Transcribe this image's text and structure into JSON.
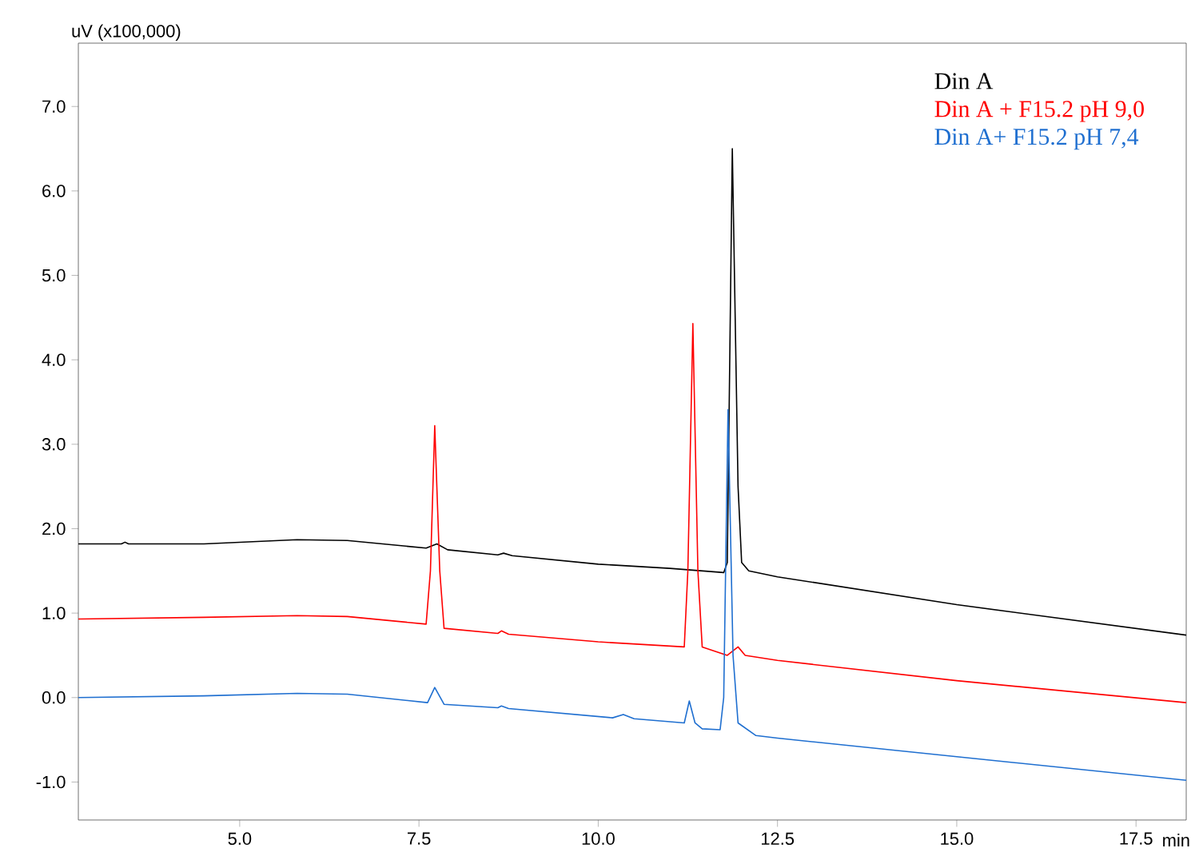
{
  "chart_data": {
    "type": "line",
    "xlabel": "min",
    "ylabel": "uV (x100,000)",
    "xlim": [
      2.75,
      18.2
    ],
    "ylim": [
      -1.45,
      7.75
    ],
    "xticks": [
      {
        "value": 5,
        "label": "5.0"
      },
      {
        "value": 7.5,
        "label": "7.5"
      },
      {
        "value": 10,
        "label": "10.0"
      },
      {
        "value": 12.5,
        "label": "12.5"
      },
      {
        "value": 15,
        "label": "15.0"
      },
      {
        "value": 17.5,
        "label": "17.5"
      }
    ],
    "yticks": [
      {
        "value": -1,
        "label": "-1.0"
      },
      {
        "value": 0,
        "label": "0.0"
      },
      {
        "value": 1,
        "label": "1.0"
      },
      {
        "value": 2,
        "label": "2.0"
      },
      {
        "value": 3,
        "label": "3.0"
      },
      {
        "value": 4,
        "label": "4.0"
      },
      {
        "value": 5,
        "label": "5.0"
      },
      {
        "value": 6,
        "label": "6.0"
      },
      {
        "value": 7,
        "label": "7.0"
      }
    ],
    "grid": false,
    "legend": "top right",
    "marker": "none",
    "line_style": "solid",
    "series": [
      {
        "name": "Din A",
        "color": "#000000",
        "x": [
          2.75,
          3.35,
          3.4,
          3.45,
          4.5,
          5.8,
          6.5,
          7.6,
          7.75,
          7.9,
          8.6,
          8.68,
          8.8,
          10,
          11.0,
          11.75,
          11.8,
          11.87,
          11.95,
          12.0,
          12.1,
          12.5,
          15,
          18.2
        ],
        "values": [
          1.82,
          1.82,
          1.84,
          1.82,
          1.82,
          1.87,
          1.86,
          1.77,
          1.82,
          1.75,
          1.69,
          1.71,
          1.68,
          1.58,
          1.53,
          1.48,
          1.6,
          6.5,
          2.5,
          1.6,
          1.5,
          1.43,
          1.1,
          0.74
        ]
      },
      {
        "name": "Din A + F15.2 pH 9,0",
        "color": "#ff0000",
        "x": [
          2.75,
          4.5,
          5.8,
          6.5,
          7.6,
          7.66,
          7.72,
          7.79,
          7.85,
          8.6,
          8.65,
          8.75,
          10,
          11.2,
          11.25,
          11.32,
          11.39,
          11.45,
          11.8,
          11.95,
          12.05,
          12.5,
          15,
          18.2
        ],
        "values": [
          0.93,
          0.95,
          0.97,
          0.96,
          0.87,
          1.5,
          3.22,
          1.5,
          0.82,
          0.76,
          0.79,
          0.75,
          0.66,
          0.6,
          1.5,
          4.43,
          1.5,
          0.6,
          0.5,
          0.6,
          0.5,
          0.44,
          0.2,
          -0.06
        ]
      },
      {
        "name": "Din A+  F15.2 pH 7,4",
        "color": "#1f6fd0",
        "x": [
          2.75,
          4.5,
          5.8,
          6.5,
          7.62,
          7.72,
          7.85,
          8.6,
          8.65,
          8.75,
          10.2,
          10.35,
          10.5,
          11.2,
          11.27,
          11.35,
          11.45,
          11.7,
          11.75,
          11.81,
          11.88,
          11.95,
          12.2,
          12.5,
          15,
          18.2
        ],
        "values": [
          0.0,
          0.02,
          0.05,
          0.04,
          -0.06,
          0.12,
          -0.08,
          -0.12,
          -0.1,
          -0.13,
          -0.24,
          -0.2,
          -0.25,
          -0.3,
          -0.04,
          -0.3,
          -0.37,
          -0.38,
          0.0,
          3.41,
          0.5,
          -0.3,
          -0.45,
          -0.48,
          -0.7,
          -0.98
        ]
      }
    ]
  }
}
